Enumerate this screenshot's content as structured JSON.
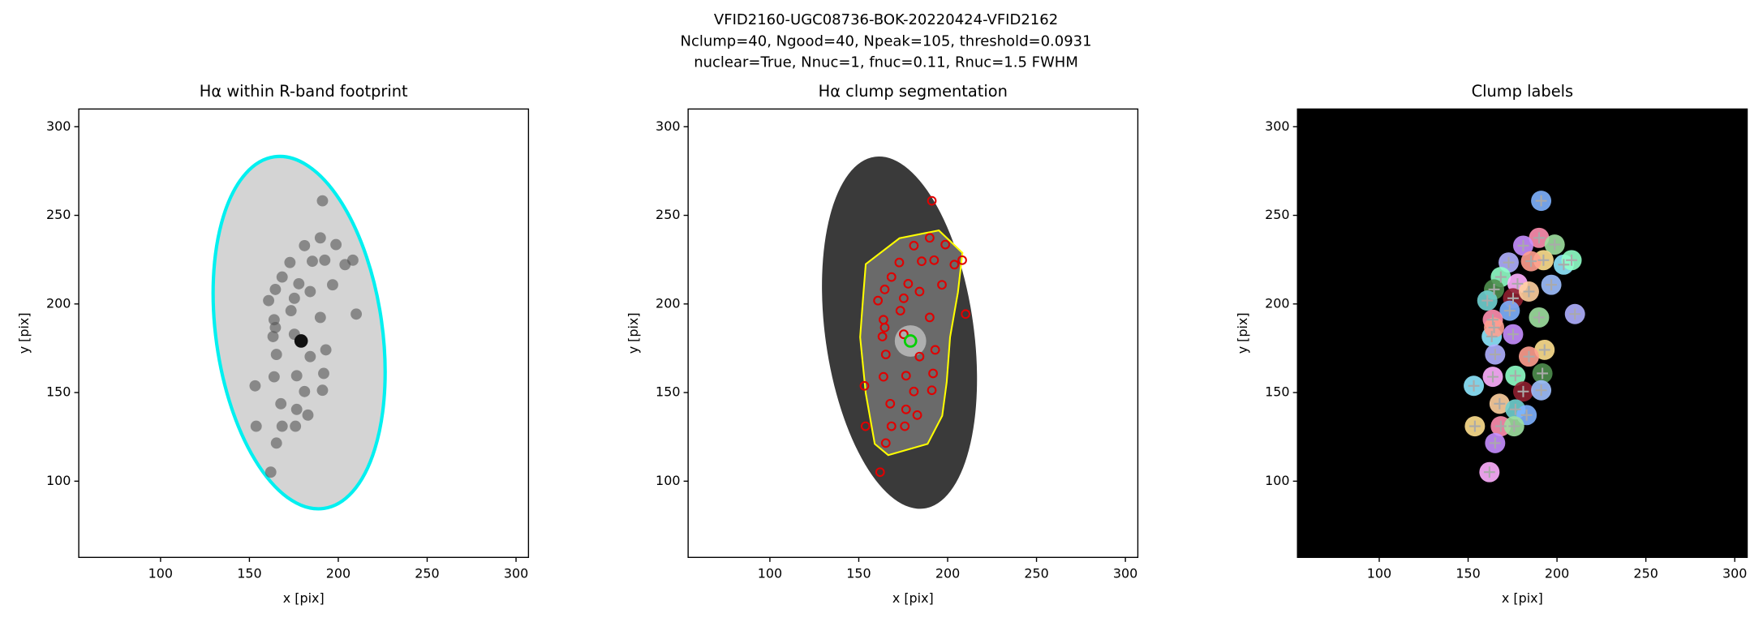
{
  "suptitle": [
    "VFID2160-UGC08736-BOK-20220424-VFID2162",
    "Nclump=40, Ngood=40, Npeak=105, threshold=0.0931",
    "nuclear=True, Nnuc=1, fnuc=0.11, Rnuc=1.5 FWHM"
  ],
  "clumps": {
    "x": [
      191.1,
      189.9,
      198.7,
      181.0,
      192.4,
      203.8,
      185.4,
      172.8,
      168.4,
      177.8,
      164.6,
      175.3,
      196.8,
      184.2,
      160.8,
      173.4,
      163.9,
      189.9,
      175.3,
      193.0,
      163.3,
      184.2,
      165.2,
      176.6,
      163.9,
      191.8,
      181.0,
      191.1,
      167.7,
      176.6,
      182.9,
      168.4,
      175.9,
      165.2,
      153.8,
      153.2,
      164.6,
      210.1,
      208.2,
      162.0
    ],
    "y": [
      258.2,
      237.3,
      233.5,
      232.9,
      224.7,
      222.2,
      224.1,
      223.4,
      215.2,
      211.4,
      208.2,
      203.2,
      210.8,
      207.0,
      201.9,
      196.2,
      191.1,
      192.4,
      182.9,
      174.1,
      181.6,
      170.3,
      171.5,
      159.5,
      158.9,
      160.8,
      150.6,
      151.3,
      143.7,
      140.5,
      137.3,
      131.0,
      131.0,
      121.5,
      131.0,
      153.8,
      186.7,
      194.3,
      224.7,
      105.1
    ]
  },
  "nucleus": {
    "x": 179.1,
    "y": 179.1
  },
  "chart_data": [
    {
      "type": "image",
      "cmap": "Greys",
      "title": "Hα within R-band footprint",
      "xlabel": "x [pix]",
      "ylabel": "y [pix]",
      "xlim": [
        54,
        307
      ],
      "ylim": [
        57,
        310
      ],
      "xticks": [
        100,
        150,
        200,
        250,
        300
      ],
      "yticks": [
        100,
        150,
        200,
        250,
        300
      ]
    },
    {
      "type": "image",
      "cmap": "gray",
      "title": "Hα clump segmentation",
      "xlabel": "x [pix]",
      "ylabel": "y [pix]",
      "xlim": [
        54,
        307
      ],
      "ylim": [
        57,
        310
      ],
      "xticks": [
        100,
        150,
        200,
        250,
        300
      ],
      "yticks": [
        100,
        150,
        200,
        250,
        300
      ]
    },
    {
      "type": "image",
      "cmap": "labels",
      "title": "Clump labels",
      "xlabel": "x [pix]",
      "ylabel": "y [pix]",
      "xlim": [
        54,
        307
      ],
      "ylim": [
        57,
        310
      ],
      "xticks": [
        100,
        150,
        200,
        250,
        300
      ],
      "yticks": [
        100,
        150,
        200,
        250,
        300
      ]
    }
  ]
}
